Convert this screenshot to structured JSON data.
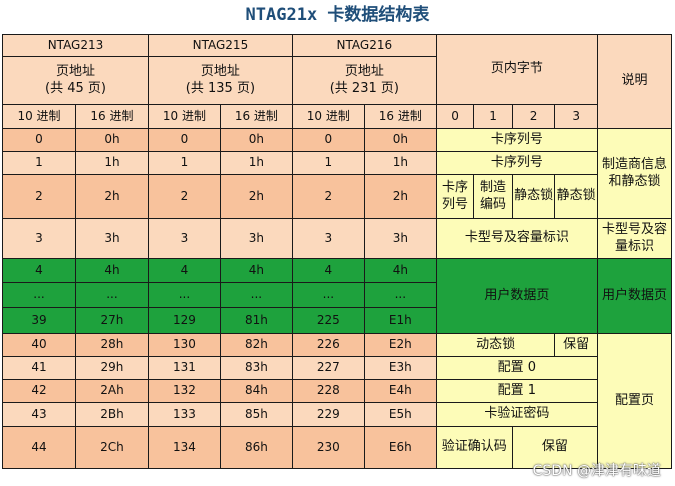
{
  "title": "NTAG21x 卡数据结构表",
  "header": {
    "models": [
      "NTAG213",
      "NTAG215",
      "NTAG216"
    ],
    "page_addr": "页地址",
    "page_counts": [
      "(共 45 页)",
      "(共 135 页)",
      "(共 231 页)"
    ],
    "radix_dec": "10 进制",
    "radix_hex": "16 进制",
    "bytes_in_page": "页内字节",
    "byte_idx": [
      "0",
      "1",
      "2",
      "3"
    ],
    "desc": "说明"
  },
  "rows": {
    "r0": [
      "0",
      "0h",
      "0",
      "0h",
      "0",
      "0h"
    ],
    "r1": [
      "1",
      "1h",
      "1",
      "1h",
      "1",
      "1h"
    ],
    "r2": [
      "2",
      "2h",
      "2",
      "2h",
      "2",
      "2h"
    ],
    "r3": [
      "3",
      "3h",
      "3",
      "3h",
      "3",
      "3h"
    ],
    "r4": [
      "4",
      "4h",
      "4",
      "4h",
      "4",
      "4h"
    ],
    "r5": [
      "...",
      "...",
      "...",
      "...",
      "...",
      "..."
    ],
    "r6": [
      "39",
      "27h",
      "129",
      "81h",
      "225",
      "E1h"
    ],
    "r7": [
      "40",
      "28h",
      "130",
      "82h",
      "226",
      "E2h"
    ],
    "r8": [
      "41",
      "29h",
      "131",
      "83h",
      "227",
      "E3h"
    ],
    "r9": [
      "42",
      "2Ah",
      "132",
      "84h",
      "228",
      "E4h"
    ],
    "r10": [
      "43",
      "2Bh",
      "133",
      "85h",
      "229",
      "E5h"
    ],
    "r11": [
      "44",
      "2Ch",
      "134",
      "86h",
      "230",
      "E6h"
    ]
  },
  "cells": {
    "serial": "卡序列号",
    "serial_short": "卡序列号",
    "mfg_code": "制造编码",
    "static_lock": "静态锁",
    "card_type": "卡型号及容量标识",
    "user_data": "用户数据页",
    "dyn_lock": "动态锁",
    "reserved": "保留",
    "config0": "配置 0",
    "config1": "配置 1",
    "auth_pwd": "卡验证密码",
    "auth_ack": "验证确认码"
  },
  "desc": {
    "mfg": "制造商信息和静态锁",
    "card_type": "卡型号及容量标识",
    "user_data": "用户数据页",
    "config": "配置页"
  },
  "watermark": "CSDN @津津有味道"
}
